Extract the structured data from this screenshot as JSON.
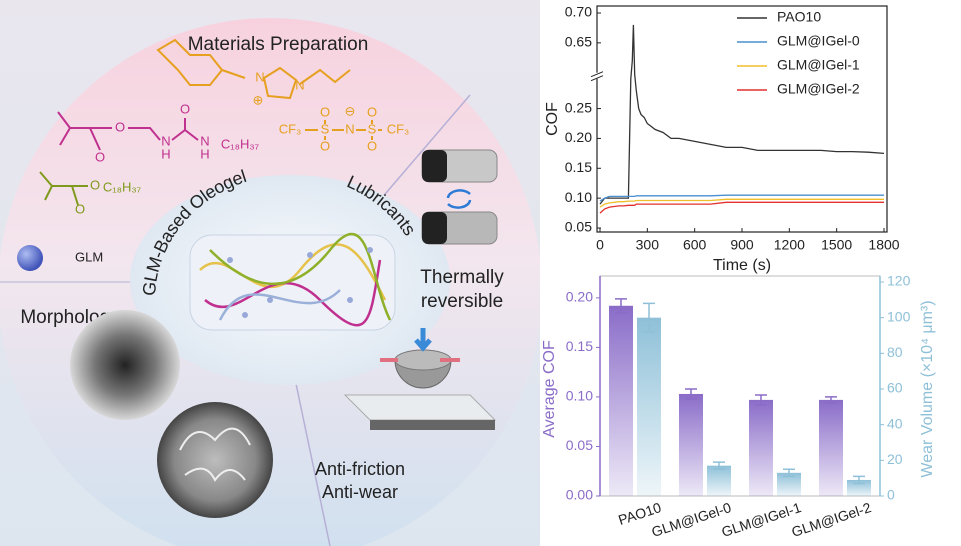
{
  "diagram": {
    "title": "Materials Preparation",
    "center_label_1": "GLM-Based Oleogel",
    "center_label_2": "Lubricants",
    "thermal_lines": [
      "Thermally",
      "reversible"
    ],
    "morphology": "Morphology",
    "function_lines": [
      "Anti-friction",
      "Anti-wear"
    ],
    "sphere_label": "GLM",
    "structures": [
      {
        "color": "#e6a020",
        "labels": [
          "N",
          "N",
          "⊕"
        ]
      },
      {
        "color": "#e6a020",
        "labels": [
          "CF₃",
          "S",
          "N",
          "S",
          "CF₃",
          "O",
          "O",
          "O",
          "O",
          "⊖"
        ]
      },
      {
        "color": "#c0308f",
        "labels": [
          "O",
          "O",
          "N",
          "H",
          "O",
          "N",
          "H",
          "C₁₈H₃₇"
        ]
      },
      {
        "color": "#7f9a1c",
        "labels": [
          "O",
          "O",
          "C₁₈H₃₇"
        ]
      }
    ]
  },
  "chart_data": [
    {
      "type": "line",
      "y_label": "COF",
      "x_label": "Time (s)",
      "x": [
        0,
        30,
        60,
        90,
        120,
        150,
        180,
        195,
        205,
        212,
        220,
        230,
        245,
        260,
        280,
        300,
        350,
        400,
        450,
        500,
        600,
        700,
        800,
        900,
        1000,
        1100,
        1200,
        1300,
        1400,
        1500,
        1600,
        1700,
        1800
      ],
      "xlim": [
        0,
        1800
      ],
      "xticks": [
        0,
        300,
        600,
        900,
        1200,
        1500,
        1800
      ],
      "ylim": [
        0.05,
        0.7
      ],
      "ybreak": [
        0.3,
        0.6
      ],
      "yticks": [
        0.05,
        {
          "value": 0.1,
          "label": "0.10"
        },
        0.15,
        {
          "value": 0.2,
          "label": "0.20"
        },
        0.25,
        0.65,
        {
          "value": 0.7,
          "label": "0.70"
        }
      ],
      "legend": "upper right",
      "series": [
        {
          "name": "PAO10",
          "color": "#333333",
          "values": [
            0.09,
            0.1,
            0.1,
            0.1,
            0.1,
            0.1,
            0.1,
            0.3,
            0.62,
            0.68,
            0.5,
            0.28,
            0.25,
            0.24,
            0.235,
            0.225,
            0.215,
            0.21,
            0.2,
            0.2,
            0.195,
            0.19,
            0.185,
            0.185,
            0.18,
            0.18,
            0.18,
            0.18,
            0.18,
            0.178,
            0.178,
            0.177,
            0.175
          ]
        },
        {
          "name": "GLM@IGel-0",
          "color": "#4a8fcf",
          "values": [
            0.095,
            0.1,
            0.103,
            0.103,
            0.103,
            0.103,
            0.103,
            0.103,
            0.103,
            0.103,
            0.103,
            0.104,
            0.104,
            0.104,
            0.104,
            0.104,
            0.104,
            0.104,
            0.104,
            0.104,
            0.104,
            0.104,
            0.105,
            0.105,
            0.105,
            0.105,
            0.105,
            0.105,
            0.105,
            0.105,
            0.105,
            0.105,
            0.105
          ]
        },
        {
          "name": "GLM@IGel-1",
          "color": "#f0bf2a",
          "values": [
            0.085,
            0.09,
            0.092,
            0.093,
            0.094,
            0.094,
            0.095,
            0.095,
            0.095,
            0.095,
            0.095,
            0.096,
            0.096,
            0.096,
            0.096,
            0.096,
            0.096,
            0.096,
            0.096,
            0.096,
            0.096,
            0.096,
            0.098,
            0.098,
            0.098,
            0.098,
            0.098,
            0.098,
            0.098,
            0.098,
            0.098,
            0.098,
            0.098
          ]
        },
        {
          "name": "GLM@IGel-2",
          "color": "#e2302c",
          "values": [
            0.075,
            0.082,
            0.085,
            0.086,
            0.087,
            0.087,
            0.088,
            0.088,
            0.088,
            0.088,
            0.088,
            0.09,
            0.09,
            0.09,
            0.09,
            0.09,
            0.09,
            0.09,
            0.09,
            0.09,
            0.09,
            0.09,
            0.093,
            0.093,
            0.093,
            0.093,
            0.093,
            0.093,
            0.093,
            0.093,
            0.093,
            0.093,
            0.093
          ]
        }
      ]
    },
    {
      "type": "bar",
      "y_label": "Average COF",
      "y2_label": "Wear Volume (×10⁴ μm³)",
      "categories": [
        "PAO10",
        "GLM@IGel-0",
        "GLM@IGel-1",
        "GLM@IGel-2"
      ],
      "ylim": [
        0,
        0.216
      ],
      "yticks": [
        {
          "value": 0,
          "label": "0.00"
        },
        0.05,
        {
          "value": 0.1,
          "label": "0.10"
        },
        0.15,
        {
          "value": 0.2,
          "label": "0.20"
        }
      ],
      "y2lim": [
        0,
        120
      ],
      "y2ticks": [
        0,
        20,
        40,
        60,
        80,
        100,
        120
      ],
      "series": [
        {
          "color": "#8a6cc8",
          "values": [
            0.192,
            0.103,
            0.097,
            0.097
          ],
          "errors": [
            0.007,
            0.005,
            0.005,
            0.003
          ]
        },
        {
          "color": "#8ec0d8",
          "axis": "y2",
          "values": [
            100,
            17,
            13,
            9
          ],
          "errors": [
            8,
            2,
            2,
            2
          ]
        }
      ]
    }
  ]
}
